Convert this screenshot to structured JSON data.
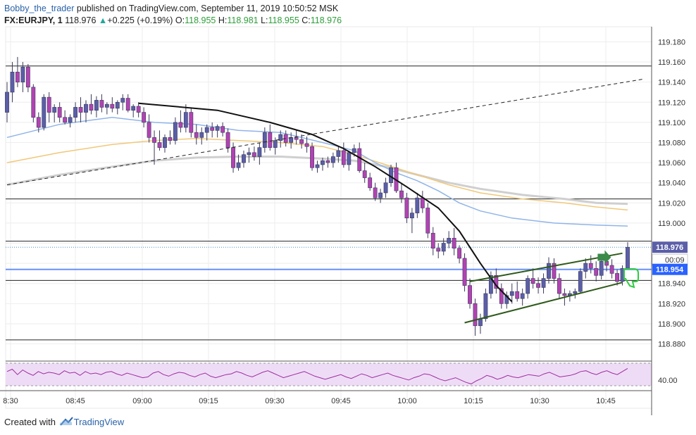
{
  "header": {
    "author": "Bobby_the_trader",
    "published": "published on TradingView.com, September 11, 2019 10:50:52 MSK",
    "symbol": "FX:EURJPY, 1",
    "last": "118.976",
    "arrow": "▲",
    "change": "+0.225 (+0.19%)",
    "o_label": "O:",
    "o_value": "118.955",
    "h_label": "H:",
    "h_value": "118.981",
    "l_label": "L:",
    "l_value": "118.955",
    "c_label": "C:",
    "c_value": "118.976"
  },
  "footer": {
    "created_with": "Created with",
    "brand": "TradingView",
    "brand_icon": "tradingview-cloud-icon"
  },
  "colors": {
    "up": "#26a69a",
    "candle_up_body": "#5b5ea8",
    "candle_down_body": "#b342b3",
    "wick": "#3a3a5a",
    "ma_fast": "#90b4e8",
    "ma_mid": "#f0c878",
    "ma_slow": "#cfcfcf",
    "rsi": "#a02ca0",
    "rsi_band": "#eedcf6",
    "price_line": "#2962ff",
    "trend_green": "#2e5a1a"
  },
  "chart_data": {
    "type": "candlestick",
    "instrument": "FX:EURJPY",
    "interval": "1",
    "ylim": [
      118.865,
      119.195
    ],
    "y_ticks": [
      119.18,
      119.16,
      119.14,
      119.12,
      119.1,
      119.08,
      119.06,
      119.04,
      119.02,
      119.0,
      118.98,
      118.96,
      118.94,
      118.92,
      118.9,
      118.88
    ],
    "y_tick_labels": [
      "119.180",
      "119.160",
      "119.140",
      "119.120",
      "119.100",
      "119.080",
      "119.060",
      "119.040",
      "119.020",
      "119.000",
      "",
      "",
      "118.940",
      "118.920",
      "118.900",
      "118.880"
    ],
    "x_ticks": [
      "8:30",
      "08:45",
      "09:00",
      "09:15",
      "09:30",
      "09:45",
      "10:00",
      "10:15",
      "10:30",
      "10:45"
    ],
    "price_labels": {
      "last": "118.976",
      "countdown": "00:09",
      "line": "118.954"
    },
    "horizontal_lines": [
      119.156,
      119.024,
      118.982,
      118.943,
      118.884
    ],
    "blue_line": 118.954,
    "candles_ohlc": [
      [
        119.11,
        119.14,
        119.1,
        119.13
      ],
      [
        119.13,
        119.16,
        119.12,
        119.15
      ],
      [
        119.15,
        119.165,
        119.135,
        119.14
      ],
      [
        119.14,
        119.16,
        119.13,
        119.155
      ],
      [
        119.155,
        119.158,
        119.13,
        119.135
      ],
      [
        119.135,
        119.138,
        119.1,
        119.105
      ],
      [
        119.105,
        119.11,
        119.09,
        119.095
      ],
      [
        119.095,
        119.128,
        119.092,
        119.125
      ],
      [
        119.125,
        119.13,
        119.1,
        119.11
      ],
      [
        119.11,
        119.118,
        119.1,
        119.115
      ],
      [
        119.115,
        119.12,
        119.1,
        119.105
      ],
      [
        119.105,
        119.112,
        119.098,
        119.1
      ],
      [
        119.1,
        119.108,
        119.095,
        119.105
      ],
      [
        119.105,
        119.12,
        119.1,
        119.115
      ],
      [
        119.115,
        119.125,
        119.1,
        119.11
      ],
      [
        119.11,
        119.122,
        119.1,
        119.118
      ],
      [
        119.118,
        119.128,
        119.108,
        119.112
      ],
      [
        119.112,
        119.126,
        119.105,
        119.122
      ],
      [
        119.122,
        119.128,
        119.11,
        119.115
      ],
      [
        119.115,
        119.12,
        119.108,
        119.118
      ],
      [
        119.118,
        119.125,
        119.11,
        119.114
      ],
      [
        119.114,
        119.122,
        119.108,
        119.12
      ],
      [
        119.12,
        119.128,
        119.112,
        119.124
      ],
      [
        119.124,
        119.128,
        119.11,
        119.112
      ],
      [
        119.112,
        119.118,
        119.105,
        119.116
      ],
      [
        119.116,
        119.12,
        119.105,
        119.11
      ],
      [
        119.11,
        119.115,
        119.095,
        119.1
      ],
      [
        119.1,
        119.108,
        119.08,
        119.085
      ],
      [
        119.085,
        119.092,
        119.058,
        119.08
      ],
      [
        119.08,
        119.092,
        119.072,
        119.075
      ],
      [
        119.075,
        119.088,
        119.07,
        119.085
      ],
      [
        119.085,
        119.092,
        119.078,
        119.082
      ],
      [
        119.082,
        119.105,
        119.078,
        119.1
      ],
      [
        119.1,
        119.112,
        119.09,
        119.095
      ],
      [
        119.095,
        119.118,
        119.09,
        119.11
      ],
      [
        119.11,
        119.115,
        119.085,
        119.09
      ],
      [
        119.09,
        119.098,
        119.078,
        119.085
      ],
      [
        119.085,
        119.095,
        119.078,
        119.09
      ],
      [
        119.09,
        119.098,
        119.082,
        119.095
      ],
      [
        119.095,
        119.1,
        119.085,
        119.092
      ],
      [
        119.092,
        119.098,
        119.085,
        119.096
      ],
      [
        119.096,
        119.1,
        119.086,
        119.09
      ],
      [
        119.09,
        119.094,
        119.07,
        119.075
      ],
      [
        119.075,
        119.08,
        119.05,
        119.055
      ],
      [
        119.055,
        119.068,
        119.052,
        119.06
      ],
      [
        119.06,
        119.072,
        119.055,
        119.068
      ],
      [
        119.068,
        119.075,
        119.06,
        119.07
      ],
      [
        119.07,
        119.076,
        119.062,
        119.066
      ],
      [
        119.066,
        119.08,
        119.058,
        119.075
      ],
      [
        119.075,
        119.095,
        119.07,
        119.09
      ],
      [
        119.09,
        119.098,
        119.072,
        119.075
      ],
      [
        119.075,
        119.085,
        119.068,
        119.082
      ],
      [
        119.082,
        119.092,
        119.075,
        119.088
      ],
      [
        119.088,
        119.092,
        119.076,
        119.08
      ],
      [
        119.08,
        119.09,
        119.074,
        119.085
      ],
      [
        119.085,
        119.092,
        119.078,
        119.083
      ],
      [
        119.083,
        119.088,
        119.074,
        119.079
      ],
      [
        119.079,
        119.086,
        119.07,
        119.076
      ],
      [
        119.076,
        119.08,
        119.052,
        119.055
      ],
      [
        119.055,
        119.062,
        119.05,
        119.058
      ],
      [
        119.058,
        119.065,
        119.052,
        119.062
      ],
      [
        119.062,
        119.066,
        119.055,
        119.06
      ],
      [
        119.06,
        119.07,
        119.055,
        119.066
      ],
      [
        119.066,
        119.076,
        119.06,
        119.072
      ],
      [
        119.072,
        119.08,
        119.055,
        119.058
      ],
      [
        119.058,
        119.072,
        119.052,
        119.07
      ],
      [
        119.07,
        119.078,
        119.066,
        119.074
      ],
      [
        119.074,
        119.08,
        119.05,
        119.052
      ],
      [
        119.052,
        119.06,
        119.04,
        119.045
      ],
      [
        119.045,
        119.05,
        119.032,
        119.035
      ],
      [
        119.035,
        119.04,
        119.022,
        119.025
      ],
      [
        119.025,
        119.034,
        119.02,
        119.03
      ],
      [
        119.03,
        119.045,
        119.025,
        119.04
      ],
      [
        119.04,
        119.058,
        119.036,
        119.055
      ],
      [
        119.055,
        119.06,
        119.03,
        119.032
      ],
      [
        119.032,
        119.04,
        119.02,
        119.025
      ],
      [
        119.025,
        119.03,
        119.0,
        119.005
      ],
      [
        119.005,
        119.015,
        118.99,
        119.01
      ],
      [
        119.01,
        119.03,
        119.005,
        119.025
      ],
      [
        119.025,
        119.032,
        119.01,
        119.015
      ],
      [
        119.015,
        119.02,
        118.985,
        118.99
      ],
      [
        118.99,
        118.996,
        118.968,
        118.975
      ],
      [
        118.975,
        118.98,
        118.965,
        118.972
      ],
      [
        118.972,
        118.985,
        118.968,
        118.98
      ],
      [
        118.98,
        118.992,
        118.975,
        118.985
      ],
      [
        118.985,
        118.995,
        118.968,
        118.975
      ],
      [
        118.975,
        118.978,
        118.96,
        118.965
      ],
      [
        118.965,
        118.97,
        118.932,
        118.938
      ],
      [
        118.938,
        118.945,
        118.915,
        118.92
      ],
      [
        118.92,
        118.925,
        118.888,
        118.898
      ],
      [
        118.898,
        118.91,
        118.89,
        118.905
      ],
      [
        118.905,
        118.935,
        118.902,
        118.93
      ],
      [
        118.93,
        118.952,
        118.925,
        118.948
      ],
      [
        118.948,
        118.955,
        118.93,
        118.935
      ],
      [
        118.935,
        118.94,
        118.915,
        118.92
      ],
      [
        118.92,
        118.932,
        118.915,
        118.928
      ],
      [
        118.928,
        118.94,
        118.92,
        118.932
      ],
      [
        118.932,
        118.942,
        118.922,
        118.925
      ],
      [
        118.925,
        118.935,
        118.918,
        118.93
      ],
      [
        118.93,
        118.948,
        118.925,
        118.945
      ],
      [
        118.945,
        118.955,
        118.935,
        118.94
      ],
      [
        118.94,
        118.946,
        118.93,
        118.936
      ],
      [
        118.936,
        118.95,
        118.93,
        118.945
      ],
      [
        118.945,
        118.966,
        118.94,
        118.96
      ],
      [
        118.96,
        118.965,
        118.94,
        118.945
      ],
      [
        118.945,
        118.95,
        118.925,
        118.93
      ],
      [
        118.93,
        118.935,
        118.918,
        118.928
      ],
      [
        118.928,
        118.933,
        118.922,
        118.93
      ],
      [
        118.93,
        118.935,
        118.925,
        118.932
      ],
      [
        118.932,
        118.955,
        118.93,
        118.952
      ],
      [
        118.952,
        118.965,
        118.945,
        118.96
      ],
      [
        118.96,
        118.968,
        118.95,
        118.955
      ],
      [
        118.955,
        118.962,
        118.942,
        118.948
      ],
      [
        118.948,
        118.965,
        118.944,
        118.962
      ],
      [
        118.962,
        118.968,
        118.952,
        118.958
      ],
      [
        118.958,
        118.964,
        118.945,
        118.95
      ],
      [
        118.95,
        118.954,
        118.938,
        118.942
      ],
      [
        118.942,
        118.958,
        118.938,
        118.955
      ],
      [
        118.955,
        118.981,
        118.955,
        118.976
      ]
    ],
    "ma_fast_points": [
      [
        0,
        119.085
      ],
      [
        10,
        119.098
      ],
      [
        20,
        119.105
      ],
      [
        28,
        119.1
      ],
      [
        36,
        119.098
      ],
      [
        44,
        119.092
      ],
      [
        52,
        119.09
      ],
      [
        60,
        119.08
      ],
      [
        66,
        119.072
      ],
      [
        70,
        119.06
      ],
      [
        74,
        119.05
      ],
      [
        78,
        119.042
      ],
      [
        82,
        119.032
      ],
      [
        86,
        119.02
      ],
      [
        90,
        119.012
      ],
      [
        96,
        119.005
      ],
      [
        104,
        119.0
      ],
      [
        112,
        118.998
      ],
      [
        118,
        118.997
      ]
    ],
    "ma_mid_points": [
      [
        0,
        119.06
      ],
      [
        10,
        119.07
      ],
      [
        20,
        119.078
      ],
      [
        28,
        119.082
      ],
      [
        36,
        119.084
      ],
      [
        44,
        119.082
      ],
      [
        52,
        119.08
      ],
      [
        60,
        119.076
      ],
      [
        66,
        119.068
      ],
      [
        72,
        119.058
      ],
      [
        78,
        119.048
      ],
      [
        84,
        119.038
      ],
      [
        90,
        119.03
      ],
      [
        98,
        119.024
      ],
      [
        106,
        119.02
      ],
      [
        112,
        119.016
      ],
      [
        118,
        119.013
      ]
    ],
    "ma_slow_points": [
      [
        0,
        119.038
      ],
      [
        10,
        119.048
      ],
      [
        20,
        119.056
      ],
      [
        28,
        119.062
      ],
      [
        36,
        119.065
      ],
      [
        44,
        119.066
      ],
      [
        52,
        119.066
      ],
      [
        60,
        119.064
      ],
      [
        66,
        119.062
      ],
      [
        72,
        119.056
      ],
      [
        78,
        119.048
      ],
      [
        84,
        119.04
      ],
      [
        90,
        119.034
      ],
      [
        98,
        119.028
      ],
      [
        106,
        119.024
      ],
      [
        112,
        119.02
      ],
      [
        118,
        119.019
      ]
    ],
    "dashed_trend": [
      [
        0,
        119.038
      ],
      [
        121,
        119.143
      ]
    ],
    "black_curve": [
      [
        25,
        119.119
      ],
      [
        40,
        119.112
      ],
      [
        50,
        119.1
      ],
      [
        58,
        119.088
      ],
      [
        64,
        119.074
      ],
      [
        70,
        119.056
      ],
      [
        76,
        119.036
      ],
      [
        82,
        119.015
      ],
      [
        86,
        118.992
      ],
      [
        90,
        118.96
      ],
      [
        93,
        118.938
      ],
      [
        96,
        118.922
      ]
    ],
    "green_channel_upper": [
      [
        88,
        118.942
      ],
      [
        117,
        118.97
      ]
    ],
    "green_channel_lower": [
      [
        87,
        118.901
      ],
      [
        117,
        118.941
      ]
    ],
    "rsi": {
      "label": "40.00",
      "values": [
        52,
        55,
        48,
        54,
        50,
        47,
        52,
        49,
        51,
        50,
        48,
        53,
        50,
        51,
        47,
        52,
        49,
        50,
        48,
        51,
        52,
        49,
        47,
        50,
        48,
        46,
        44,
        45,
        50,
        52,
        48,
        46,
        49,
        51,
        50,
        47,
        45,
        48,
        50,
        46,
        44,
        46,
        48,
        49,
        52,
        50,
        47,
        45,
        48,
        51,
        53,
        50,
        47,
        44,
        46,
        48,
        50,
        52,
        49,
        46,
        44,
        42,
        44,
        46,
        48,
        45,
        43,
        46,
        49,
        47,
        44,
        46,
        48,
        50,
        47,
        45,
        43,
        41,
        44,
        46,
        49,
        48,
        45,
        42,
        40,
        42,
        44,
        41,
        38,
        36,
        40,
        43,
        47,
        45,
        42,
        44,
        47,
        45,
        44,
        46,
        48,
        47,
        46,
        49,
        51,
        48,
        45,
        46,
        47,
        49,
        52,
        53,
        50,
        48,
        51,
        53,
        50,
        48,
        52,
        56
      ]
    }
  }
}
